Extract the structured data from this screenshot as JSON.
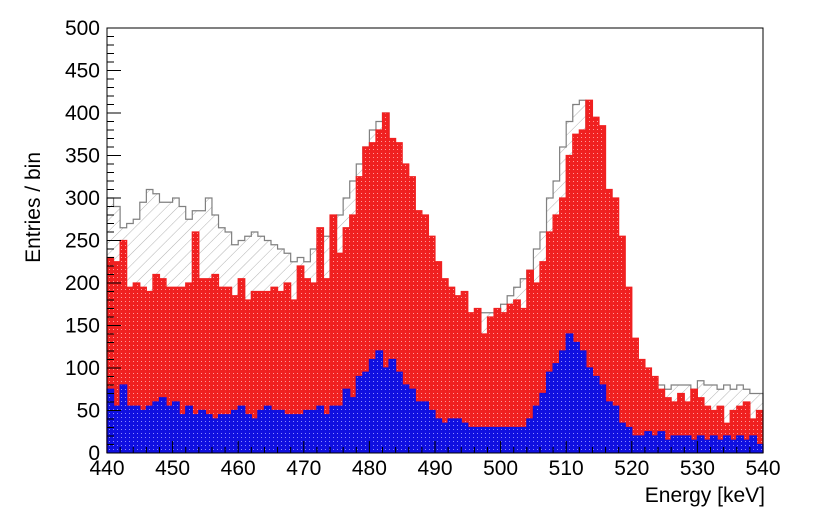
{
  "chart_data": {
    "type": "bar",
    "subtype": "stacked-step-histogram",
    "xlabel": "Energy [keV]",
    "ylabel": "Entries / bin",
    "xlim": [
      440,
      540
    ],
    "ylim": [
      0,
      500
    ],
    "bin_width": 1,
    "x_ticks": [
      440,
      450,
      460,
      470,
      480,
      490,
      500,
      510,
      520,
      530,
      540
    ],
    "y_ticks": [
      0,
      50,
      100,
      150,
      200,
      250,
      300,
      350,
      400,
      450,
      500
    ],
    "grid": false,
    "legend": "none",
    "colors": {
      "total_outline": "#808080",
      "red_fill": "#f02020",
      "blue_fill": "#1010e0",
      "hatch": "#b0b0b0",
      "frame": "#000000"
    },
    "series": [
      {
        "style": "outline-hatched",
        "values": [
          300,
          290,
          265,
          270,
          275,
          295,
          310,
          305,
          295,
          295,
          300,
          290,
          275,
          285,
          285,
          300,
          280,
          265,
          260,
          245,
          250,
          255,
          260,
          255,
          250,
          245,
          240,
          235,
          225,
          230,
          225,
          240,
          245,
          255,
          265,
          280,
          300,
          320,
          340,
          360,
          380,
          390,
          400,
          365,
          320,
          280,
          240,
          220,
          205,
          190,
          165,
          155,
          140,
          145,
          150,
          155,
          160,
          165,
          165,
          165,
          175,
          185,
          195,
          205,
          215,
          240,
          260,
          300,
          320,
          360,
          390,
          410,
          415,
          380,
          360,
          300,
          240,
          200,
          150,
          120,
          85,
          80,
          85,
          80,
          80,
          75,
          80,
          80,
          80,
          75,
          85,
          80,
          80,
          75,
          80,
          75,
          80,
          75,
          70,
          70
        ]
      },
      {
        "style": "red-dotted",
        "values": [
          230,
          225,
          250,
          195,
          200,
          195,
          190,
          210,
          205,
          195,
          195,
          195,
          200,
          260,
          205,
          205,
          210,
          195,
          195,
          185,
          205,
          180,
          190,
          190,
          190,
          195,
          190,
          200,
          180,
          220,
          205,
          200,
          265,
          205,
          280,
          235,
          265,
          280,
          325,
          360,
          365,
          380,
          400,
          370,
          365,
          340,
          325,
          285,
          280,
          255,
          225,
          205,
          195,
          185,
          190,
          165,
          170,
          140,
          160,
          170,
          165,
          175,
          180,
          170,
          215,
          200,
          225,
          260,
          280,
          300,
          350,
          375,
          380,
          415,
          395,
          385,
          310,
          300,
          255,
          195,
          135,
          110,
          100,
          90,
          75,
          65,
          60,
          70,
          60,
          75,
          65,
          55,
          50,
          55,
          35,
          50,
          55,
          60,
          40,
          50
        ]
      },
      {
        "style": "blue-dotted",
        "values": [
          75,
          55,
          80,
          55,
          55,
          50,
          55,
          60,
          65,
          55,
          60,
          45,
          55,
          45,
          50,
          45,
          40,
          45,
          45,
          50,
          55,
          45,
          40,
          50,
          55,
          50,
          50,
          45,
          45,
          45,
          50,
          50,
          55,
          45,
          55,
          55,
          75,
          65,
          90,
          95,
          110,
          120,
          100,
          110,
          95,
          80,
          75,
          60,
          60,
          50,
          40,
          35,
          40,
          40,
          35,
          30,
          30,
          30,
          30,
          30,
          30,
          30,
          30,
          30,
          40,
          55,
          70,
          95,
          105,
          120,
          140,
          130,
          120,
          100,
          90,
          80,
          60,
          55,
          35,
          30,
          20,
          20,
          25,
          20,
          25,
          15,
          20,
          20,
          20,
          15,
          20,
          15,
          20,
          15,
          20,
          15,
          20,
          15,
          20,
          10
        ]
      }
    ]
  }
}
